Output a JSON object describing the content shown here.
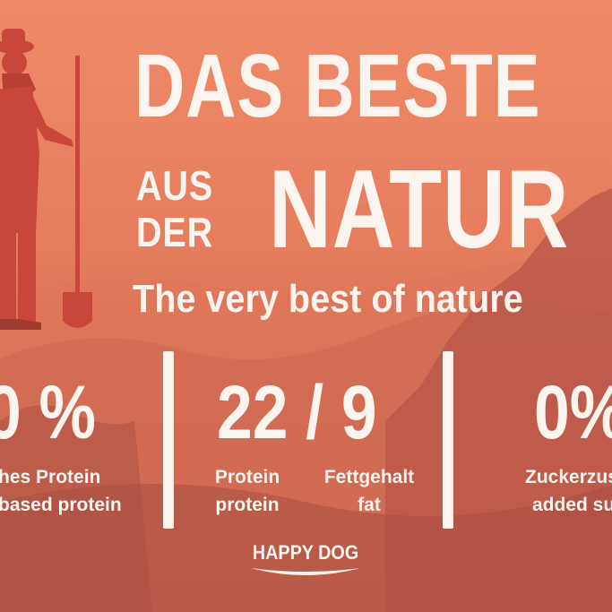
{
  "headline": {
    "line1": "DAS BESTE",
    "line2a": "AUS",
    "line2b": "DER",
    "line3": "NATUR",
    "subtitle": "The very best of nature"
  },
  "stats": [
    {
      "value": "0 %",
      "label_de": "hes Protein",
      "label_en": "based protein"
    },
    {
      "value": "22 / 9",
      "labels": [
        {
          "de": "Protein",
          "en": "protein"
        },
        {
          "de": "Fettgehalt",
          "en": "fat"
        }
      ]
    },
    {
      "value": "0%",
      "label_de": "Zuckerzus",
      "label_en": "added su"
    }
  ],
  "brand": {
    "name": "HAPPY DOG"
  },
  "colors": {
    "background": "#e57d5e",
    "text": "#fbf4ef",
    "figure": "#c9473a"
  }
}
